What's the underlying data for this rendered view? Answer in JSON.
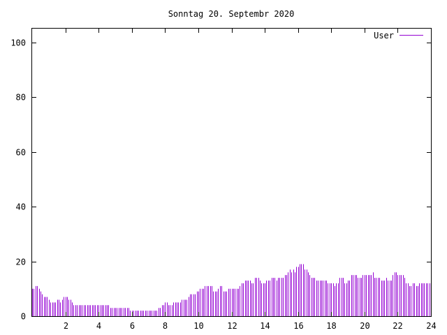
{
  "chart_data": {
    "type": "bar",
    "title": "Sonntag 20. Septembr 2020",
    "xlabel": "",
    "ylabel": "",
    "xlim": [
      0,
      24
    ],
    "ylim": [
      0,
      105
    ],
    "xticks": [
      2,
      4,
      6,
      8,
      10,
      12,
      14,
      16,
      18,
      20,
      22,
      24
    ],
    "yticks": [
      0,
      20,
      40,
      60,
      80,
      100
    ],
    "grid": false,
    "legend_position": "top-right",
    "series": [
      {
        "name": "User",
        "color": "#9400d3",
        "points": [
          [
            0.0,
            10
          ],
          [
            0.1,
            10
          ],
          [
            0.2,
            11
          ],
          [
            0.3,
            11
          ],
          [
            0.4,
            10
          ],
          [
            0.5,
            9
          ],
          [
            0.6,
            8
          ],
          [
            0.7,
            7
          ],
          [
            0.8,
            7
          ],
          [
            0.9,
            7
          ],
          [
            1.0,
            6
          ],
          [
            1.1,
            5
          ],
          [
            1.2,
            5
          ],
          [
            1.3,
            5
          ],
          [
            1.4,
            5
          ],
          [
            1.5,
            6
          ],
          [
            1.6,
            6
          ],
          [
            1.7,
            5
          ],
          [
            1.8,
            6
          ],
          [
            1.9,
            7
          ],
          [
            2.0,
            7
          ],
          [
            2.1,
            7
          ],
          [
            2.2,
            6
          ],
          [
            2.3,
            6
          ],
          [
            2.4,
            5
          ],
          [
            2.5,
            4
          ],
          [
            2.6,
            4
          ],
          [
            2.7,
            4
          ],
          [
            2.8,
            4
          ],
          [
            2.9,
            4
          ],
          [
            3.0,
            4
          ],
          [
            3.1,
            4
          ],
          [
            3.2,
            4
          ],
          [
            3.3,
            4
          ],
          [
            3.4,
            4
          ],
          [
            3.5,
            4
          ],
          [
            3.6,
            4
          ],
          [
            3.7,
            4
          ],
          [
            3.8,
            4
          ],
          [
            3.9,
            4
          ],
          [
            4.0,
            4
          ],
          [
            4.1,
            4
          ],
          [
            4.2,
            4
          ],
          [
            4.3,
            4
          ],
          [
            4.4,
            4
          ],
          [
            4.5,
            4
          ],
          [
            4.6,
            4
          ],
          [
            4.7,
            3
          ],
          [
            4.8,
            3
          ],
          [
            4.9,
            3
          ],
          [
            5.0,
            3
          ],
          [
            5.1,
            3
          ],
          [
            5.2,
            3
          ],
          [
            5.3,
            3
          ],
          [
            5.4,
            3
          ],
          [
            5.5,
            3
          ],
          [
            5.6,
            3
          ],
          [
            5.7,
            3
          ],
          [
            5.8,
            3
          ],
          [
            5.9,
            2
          ],
          [
            6.0,
            2
          ],
          [
            6.1,
            2
          ],
          [
            6.2,
            2
          ],
          [
            6.3,
            2
          ],
          [
            6.4,
            2
          ],
          [
            6.5,
            2
          ],
          [
            6.6,
            2
          ],
          [
            6.7,
            2
          ],
          [
            6.8,
            2
          ],
          [
            6.9,
            2
          ],
          [
            7.0,
            2
          ],
          [
            7.1,
            2
          ],
          [
            7.2,
            2
          ],
          [
            7.3,
            2
          ],
          [
            7.4,
            2
          ],
          [
            7.5,
            2
          ],
          [
            7.6,
            3
          ],
          [
            7.7,
            3
          ],
          [
            7.8,
            4
          ],
          [
            7.9,
            4
          ],
          [
            8.0,
            5
          ],
          [
            8.1,
            5
          ],
          [
            8.2,
            4
          ],
          [
            8.3,
            4
          ],
          [
            8.4,
            4
          ],
          [
            8.5,
            5
          ],
          [
            8.6,
            5
          ],
          [
            8.7,
            5
          ],
          [
            8.8,
            5
          ],
          [
            8.9,
            5
          ],
          [
            9.0,
            6
          ],
          [
            9.1,
            6
          ],
          [
            9.2,
            6
          ],
          [
            9.3,
            6
          ],
          [
            9.4,
            7
          ],
          [
            9.5,
            8
          ],
          [
            9.6,
            8
          ],
          [
            9.7,
            8
          ],
          [
            9.8,
            8
          ],
          [
            9.9,
            9
          ],
          [
            10.0,
            9
          ],
          [
            10.1,
            10
          ],
          [
            10.2,
            10
          ],
          [
            10.3,
            10
          ],
          [
            10.4,
            11
          ],
          [
            10.5,
            11
          ],
          [
            10.6,
            11
          ],
          [
            10.7,
            11
          ],
          [
            10.8,
            11
          ],
          [
            10.9,
            9
          ],
          [
            11.0,
            9
          ],
          [
            11.1,
            9
          ],
          [
            11.2,
            10
          ],
          [
            11.3,
            11
          ],
          [
            11.4,
            11
          ],
          [
            11.5,
            9
          ],
          [
            11.6,
            9
          ],
          [
            11.7,
            9
          ],
          [
            11.8,
            10
          ],
          [
            11.9,
            10
          ],
          [
            12.0,
            10
          ],
          [
            12.1,
            10
          ],
          [
            12.2,
            10
          ],
          [
            12.3,
            10
          ],
          [
            12.4,
            10
          ],
          [
            12.5,
            11
          ],
          [
            12.6,
            12
          ],
          [
            12.7,
            12
          ],
          [
            12.8,
            13
          ],
          [
            12.9,
            13
          ],
          [
            13.0,
            13
          ],
          [
            13.1,
            13
          ],
          [
            13.2,
            12
          ],
          [
            13.3,
            12
          ],
          [
            13.4,
            14
          ],
          [
            13.5,
            14
          ],
          [
            13.6,
            14
          ],
          [
            13.7,
            13
          ],
          [
            13.8,
            12
          ],
          [
            13.9,
            12
          ],
          [
            14.0,
            12
          ],
          [
            14.1,
            13
          ],
          [
            14.2,
            13
          ],
          [
            14.3,
            13
          ],
          [
            14.4,
            14
          ],
          [
            14.5,
            14
          ],
          [
            14.6,
            14
          ],
          [
            14.7,
            13
          ],
          [
            14.8,
            14
          ],
          [
            14.9,
            14
          ],
          [
            15.0,
            14
          ],
          [
            15.1,
            14
          ],
          [
            15.2,
            15
          ],
          [
            15.3,
            15
          ],
          [
            15.4,
            16
          ],
          [
            15.5,
            17
          ],
          [
            15.6,
            16
          ],
          [
            15.7,
            17
          ],
          [
            15.8,
            16
          ],
          [
            15.9,
            18
          ],
          [
            16.0,
            18
          ],
          [
            16.1,
            19
          ],
          [
            16.2,
            19
          ],
          [
            16.3,
            19
          ],
          [
            16.4,
            17
          ],
          [
            16.5,
            17
          ],
          [
            16.6,
            16
          ],
          [
            16.7,
            15
          ],
          [
            16.8,
            14
          ],
          [
            16.9,
            14
          ],
          [
            17.0,
            14
          ],
          [
            17.1,
            13
          ],
          [
            17.2,
            13
          ],
          [
            17.3,
            13
          ],
          [
            17.4,
            13
          ],
          [
            17.5,
            13
          ],
          [
            17.6,
            13
          ],
          [
            17.7,
            13
          ],
          [
            17.8,
            12
          ],
          [
            17.9,
            12
          ],
          [
            18.0,
            12
          ],
          [
            18.1,
            12
          ],
          [
            18.2,
            11
          ],
          [
            18.3,
            12
          ],
          [
            18.4,
            12
          ],
          [
            18.5,
            14
          ],
          [
            18.6,
            14
          ],
          [
            18.7,
            14
          ],
          [
            18.8,
            12
          ],
          [
            18.9,
            12
          ],
          [
            19.0,
            13
          ],
          [
            19.1,
            13
          ],
          [
            19.2,
            15
          ],
          [
            19.3,
            15
          ],
          [
            19.4,
            15
          ],
          [
            19.5,
            15
          ],
          [
            19.6,
            14
          ],
          [
            19.7,
            14
          ],
          [
            19.8,
            14
          ],
          [
            19.9,
            15
          ],
          [
            20.0,
            15
          ],
          [
            20.1,
            15
          ],
          [
            20.2,
            15
          ],
          [
            20.3,
            15
          ],
          [
            20.4,
            15
          ],
          [
            20.5,
            16
          ],
          [
            20.6,
            14
          ],
          [
            20.7,
            14
          ],
          [
            20.8,
            14
          ],
          [
            20.9,
            14
          ],
          [
            21.0,
            13
          ],
          [
            21.1,
            13
          ],
          [
            21.2,
            13
          ],
          [
            21.3,
            14
          ],
          [
            21.4,
            13
          ],
          [
            21.5,
            13
          ],
          [
            21.6,
            13
          ],
          [
            21.7,
            15
          ],
          [
            21.8,
            16
          ],
          [
            21.9,
            16
          ],
          [
            22.0,
            15
          ],
          [
            22.1,
            15
          ],
          [
            22.2,
            15
          ],
          [
            22.3,
            15
          ],
          [
            22.4,
            14
          ],
          [
            22.5,
            12
          ],
          [
            22.6,
            12
          ],
          [
            22.7,
            11
          ],
          [
            22.8,
            11
          ],
          [
            22.9,
            12
          ],
          [
            23.0,
            12
          ],
          [
            23.1,
            11
          ],
          [
            23.2,
            11
          ],
          [
            23.3,
            12
          ],
          [
            23.4,
            12
          ],
          [
            23.5,
            12
          ],
          [
            23.6,
            12
          ],
          [
            23.7,
            12
          ],
          [
            23.8,
            12
          ],
          [
            23.9,
            12
          ]
        ]
      }
    ]
  }
}
